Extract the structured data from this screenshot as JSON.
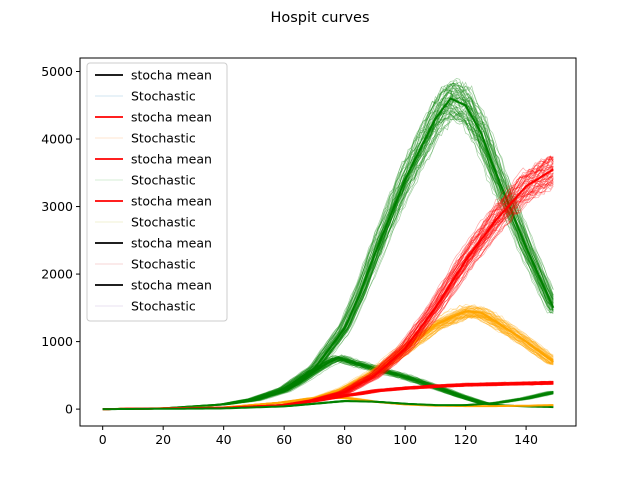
{
  "chart_data": {
    "type": "line",
    "title": "Hospit curves",
    "xlabel": "",
    "ylabel": "",
    "xlim": [
      -7.5,
      156.5
    ],
    "ylim": [
      -250,
      5200
    ],
    "x_ticks": [
      0,
      20,
      40,
      60,
      80,
      100,
      120,
      140
    ],
    "y_ticks": [
      0,
      1000,
      2000,
      3000,
      4000,
      5000
    ],
    "grid": false,
    "legend_location": "upper left",
    "legend": [
      {
        "label": "stocha mean",
        "color": "#000000"
      },
      {
        "label": "Stochastic",
        "color": "#1f77b4"
      },
      {
        "label": "stocha mean",
        "color": "#ff0000"
      },
      {
        "label": "Stochastic",
        "color": "#ff7f0e"
      },
      {
        "label": "stocha mean",
        "color": "#ff0000"
      },
      {
        "label": "Stochastic",
        "color": "#2ca02c"
      },
      {
        "label": "stocha mean",
        "color": "#ff0000"
      },
      {
        "label": "Stochastic",
        "color": "#bcbd22"
      },
      {
        "label": "stocha mean",
        "color": "#000000"
      },
      {
        "label": "Stochastic",
        "color": "#d62728"
      },
      {
        "label": "stocha mean",
        "color": "#000000"
      },
      {
        "label": "Stochastic",
        "color": "#9467bd"
      }
    ],
    "bands": [
      {
        "color": "#008000",
        "x": [
          0,
          20,
          40,
          50,
          60,
          65,
          70,
          75,
          78,
          82,
          90,
          100,
          110,
          118,
          125,
          130,
          140,
          149
        ],
        "y": [
          0,
          10,
          70,
          130,
          270,
          400,
          560,
          700,
          760,
          700,
          600,
          480,
          330,
          200,
          100,
          60,
          40,
          30
        ]
      },
      {
        "color": "#008000",
        "x": [
          0,
          20,
          40,
          50,
          60,
          70,
          80,
          85,
          90,
          100,
          110,
          115,
          120,
          125,
          130,
          140,
          149
        ],
        "y": [
          0,
          10,
          70,
          150,
          300,
          600,
          1200,
          1700,
          2300,
          3400,
          4300,
          4600,
          4500,
          4100,
          3500,
          2400,
          1500
        ]
      },
      {
        "color": "#ffa500",
        "x": [
          0,
          40,
          60,
          70,
          80,
          90,
          100,
          110,
          120,
          125,
          130,
          140,
          149
        ],
        "y": [
          0,
          20,
          60,
          150,
          300,
          550,
          900,
          1250,
          1450,
          1430,
          1300,
          1000,
          700
        ]
      },
      {
        "color": "#ffa500",
        "x": [
          0,
          40,
          60,
          70,
          80,
          90,
          100,
          110,
          120,
          130,
          140,
          149
        ],
        "y": [
          0,
          25,
          100,
          160,
          170,
          110,
          70,
          50,
          45,
          45,
          50,
          60
        ]
      },
      {
        "color": "#ff0000",
        "x": [
          0,
          40,
          60,
          70,
          80,
          85,
          90,
          100,
          110,
          120,
          130,
          140,
          149
        ],
        "y": [
          0,
          20,
          60,
          120,
          200,
          230,
          270,
          310,
          340,
          360,
          370,
          380,
          390
        ]
      },
      {
        "color": "#ff0000",
        "x": [
          0,
          40,
          60,
          70,
          80,
          90,
          100,
          110,
          120,
          130,
          140,
          149
        ],
        "y": [
          0,
          20,
          60,
          130,
          250,
          500,
          900,
          1500,
          2200,
          2800,
          3300,
          3550
        ]
      },
      {
        "color": "#008000",
        "x": [
          0,
          40,
          60,
          70,
          80,
          90,
          100,
          110,
          120,
          130,
          140,
          149
        ],
        "y": [
          0,
          10,
          40,
          80,
          120,
          110,
          80,
          60,
          60,
          90,
          160,
          250
        ]
      }
    ]
  }
}
